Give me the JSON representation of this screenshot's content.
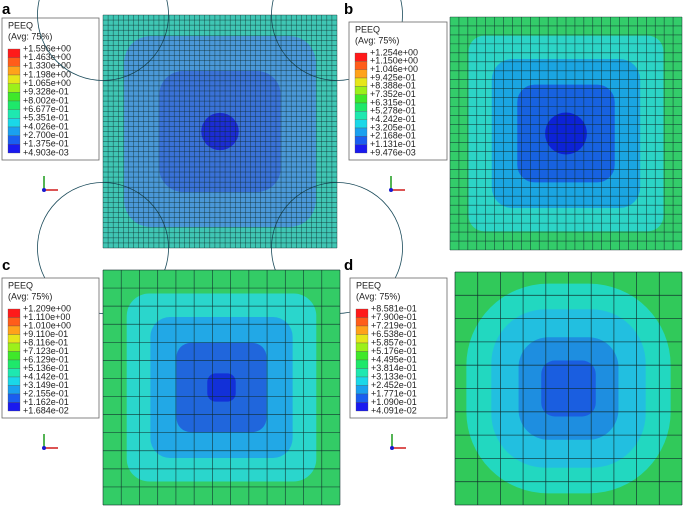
{
  "panels": [
    {
      "label": "a",
      "legend": {
        "title": "PEEQ",
        "subtitle": "(Avg: 75%)",
        "levels": [
          "+1.596e+00",
          "+1.463e+00",
          "+1.330e+00",
          "+1.198e+00",
          "+1.065e+00",
          "+9.328e-01",
          "+8.002e-01",
          "+6.677e-01",
          "+5.351e-01",
          "+4.026e-01",
          "+2.700e-01",
          "+1.375e-01",
          "+4.903e-03"
        ]
      }
    },
    {
      "label": "b",
      "legend": {
        "title": "PEEQ",
        "subtitle": "(Avg: 75%)",
        "levels": [
          "+1.254e+00",
          "+1.150e+00",
          "+1.046e+00",
          "+9.425e-01",
          "+8.388e-01",
          "+7.352e-01",
          "+6.315e-01",
          "+5.278e-01",
          "+4.242e-01",
          "+3.205e-01",
          "+2.168e-01",
          "+1.131e-01",
          "+9.476e-03"
        ]
      }
    },
    {
      "label": "c",
      "legend": {
        "title": "PEEQ",
        "subtitle": "(Avg: 75%)",
        "levels": [
          "+1.209e+00",
          "+1.110e+00",
          "+1.010e+00",
          "+9.110e-01",
          "+8.116e-01",
          "+7.123e-01",
          "+6.129e-01",
          "+5.136e-01",
          "+4.142e-01",
          "+3.149e-01",
          "+2.155e-01",
          "+1.162e-01",
          "+1.684e-02"
        ]
      }
    },
    {
      "label": "d",
      "legend": {
        "title": "PEEQ",
        "subtitle": "(Avg: 75%)",
        "levels": [
          "+8.581e-01",
          "+7.900e-01",
          "+7.219e-01",
          "+6.538e-01",
          "+5.857e-01",
          "+5.176e-01",
          "+4.495e-01",
          "+3.814e-01",
          "+3.133e-01",
          "+2.452e-01",
          "+1.771e-01",
          "+1.090e-01",
          "+4.091e-02"
        ]
      }
    }
  ]
}
